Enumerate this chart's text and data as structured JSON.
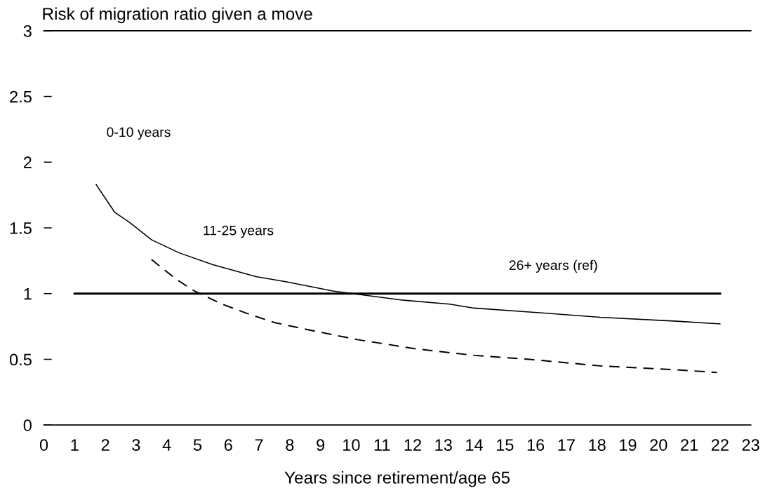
{
  "chart_data": {
    "type": "line",
    "ylabel": "Risk of migration ratio given a move",
    "xlabel": "Years since retirement/age 65",
    "annotations": [
      "0-10 years"
    ],
    "xlim": [
      0,
      23
    ],
    "xticks": [
      0,
      1,
      2,
      3,
      4,
      5,
      6,
      7,
      8,
      9,
      10,
      11,
      12,
      13,
      14,
      15,
      16,
      17,
      18,
      19,
      20,
      21,
      22,
      23
    ],
    "ylim": [
      0,
      3
    ],
    "yticks": [
      0,
      0.5,
      1,
      1.5,
      2,
      2.5,
      3
    ],
    "series": [
      {
        "color": "#000000",
        "line_style": "dashed",
        "x": [
          3.5,
          4.3,
          4.9,
          5.8,
          6.6,
          7.5,
          8.7,
          10.2,
          12.1,
          14,
          15.8,
          18.1,
          20.6,
          21.9
        ],
        "values": [
          1.26,
          1.11,
          1.02,
          0.92,
          0.85,
          0.78,
          0.72,
          0.65,
          0.58,
          0.53,
          0.5,
          0.45,
          0.42,
          0.4
        ]
      },
      {
        "name": "11-25 years",
        "color": "#000000",
        "line_style": "solid",
        "x": [
          1.7,
          2.3,
          2.8,
          3.5,
          4.4,
          5.5,
          6.9,
          7.9,
          9.4,
          11.7,
          13.2,
          14,
          15.8,
          18.1,
          20.6,
          22
        ],
        "values": [
          1.83,
          1.62,
          1.54,
          1.41,
          1.31,
          1.22,
          1.13,
          1.09,
          1.02,
          0.95,
          0.92,
          0.89,
          0.86,
          0.82,
          0.79,
          0.77
        ]
      },
      {
        "name": "26+ years (ref)",
        "color": "#000000",
        "line_style": "solid",
        "x": [
          1,
          22
        ],
        "values": [
          1,
          1
        ]
      }
    ]
  }
}
